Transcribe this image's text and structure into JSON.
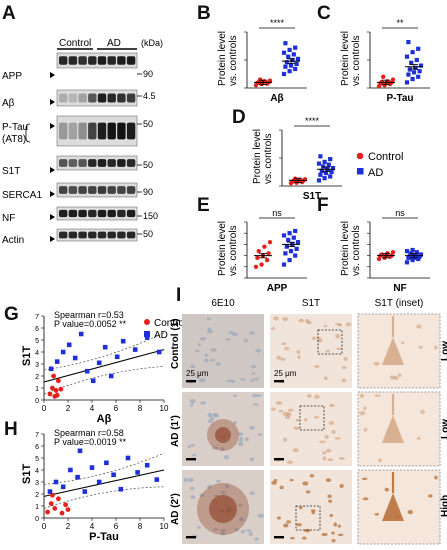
{
  "panels": {
    "A": {
      "label": "A",
      "groups": [
        "Control",
        "AD"
      ],
      "unit": "(kDa)",
      "rows": [
        {
          "name": "APP",
          "marker": "90"
        },
        {
          "name": "Aβ",
          "marker": "4.5"
        },
        {
          "name": "P-Tau",
          "name2": "(AT8)",
          "marker": "50"
        },
        {
          "name": "S1T",
          "marker": "50"
        },
        {
          "name": "SERCA1",
          "marker": "90"
        },
        {
          "name": "NF",
          "marker": "150"
        },
        {
          "name": "Actin",
          "marker": "50"
        }
      ]
    },
    "B": {
      "label": "B"
    },
    "C": {
      "label": "C"
    },
    "D": {
      "label": "D"
    },
    "E": {
      "label": "E"
    },
    "F": {
      "label": "F"
    },
    "G": {
      "label": "G"
    },
    "H": {
      "label": "H"
    },
    "I": {
      "label": "I",
      "columns": [
        "6E10",
        "S1T",
        "S1T (inset)"
      ],
      "rows": [
        {
          "name": "Control (1)",
          "grade": "Low"
        },
        {
          "name": "AD (1')",
          "grade": "Low"
        },
        {
          "name": "AD (2')",
          "grade": "High"
        }
      ],
      "scalebar": "25 μm",
      "colors": {
        "tissue": "#efe2d8",
        "hematoxylin": "#9aa8b8",
        "dab": "#b8713a",
        "plaque": "#8a3b20"
      }
    }
  },
  "legend": {
    "control": "Control",
    "ad": "AD"
  },
  "colors": {
    "control": "#e8201c",
    "ad": "#1f2fd8"
  },
  "chart_data": [
    {
      "id": "B",
      "type": "scatter",
      "xlabel": "Aβ",
      "ylabel": "Protein level vs. controls",
      "significance": "****",
      "ylim": [
        0,
        10
      ],
      "groups": [
        {
          "name": "Control",
          "values": [
            0.5,
            0.7,
            0.8,
            0.9,
            1.0,
            1.0,
            1.1,
            1.2,
            1.3,
            1.5
          ],
          "mean": 1.0
        },
        {
          "name": "AD",
          "values": [
            2.5,
            3.0,
            3.4,
            3.8,
            4.0,
            4.3,
            4.6,
            5.0,
            5.2,
            5.6,
            6.0,
            6.3,
            6.8,
            7.2,
            8.0
          ],
          "mean": 4.8
        }
      ]
    },
    {
      "id": "C",
      "type": "scatter",
      "xlabel": "P-Tau",
      "ylabel": "Protein level vs. controls",
      "significance": "**",
      "ylim": [
        0,
        10
      ],
      "groups": [
        {
          "name": "Control",
          "values": [
            0.3,
            0.5,
            0.7,
            0.8,
            0.9,
            1.0,
            1.1,
            1.2,
            1.5,
            2.0
          ],
          "mean": 1.0
        },
        {
          "name": "AD",
          "values": [
            1.0,
            1.6,
            2.0,
            2.4,
            2.8,
            3.0,
            3.3,
            3.6,
            4.0,
            4.5,
            5.0,
            5.6,
            6.4,
            7.0,
            8.2
          ],
          "mean": 3.8
        }
      ]
    },
    {
      "id": "D",
      "type": "scatter",
      "xlabel": "S1T",
      "ylabel": "Protein level vs. controls",
      "significance": "****",
      "ylim": [
        0,
        10
      ],
      "groups": [
        {
          "name": "Control",
          "values": [
            0.5,
            0.6,
            0.7,
            0.8,
            0.9,
            1.0,
            1.0,
            1.1,
            1.2,
            1.3
          ],
          "mean": 1.0
        },
        {
          "name": "AD",
          "values": [
            1.0,
            1.4,
            1.7,
            2.0,
            2.3,
            2.5,
            2.7,
            3.0,
            3.2,
            3.5,
            3.8,
            4.0,
            4.3,
            4.8,
            5.3
          ],
          "mean": 3.0
        }
      ]
    },
    {
      "id": "E",
      "type": "scatter",
      "xlabel": "APP",
      "ylabel": "Protein level vs. controls",
      "significance": "ns",
      "ylim": [
        0,
        2.5
      ],
      "groups": [
        {
          "name": "Control",
          "values": [
            0.5,
            0.6,
            0.8,
            0.9,
            1.0,
            1.1,
            1.2,
            1.4,
            1.6
          ],
          "mean": 1.0
        },
        {
          "name": "AD",
          "values": [
            0.6,
            0.8,
            1.0,
            1.1,
            1.2,
            1.3,
            1.4,
            1.5,
            1.6,
            1.7,
            1.8,
            1.9,
            2.0,
            2.1
          ],
          "mean": 1.5
        }
      ]
    },
    {
      "id": "F",
      "type": "scatter",
      "xlabel": "NF",
      "ylabel": "Protein level vs. controls",
      "significance": "ns",
      "ylim": [
        0,
        2.5
      ],
      "groups": [
        {
          "name": "Control",
          "values": [
            0.85,
            0.9,
            0.95,
            1.0,
            1.0,
            1.0,
            1.05,
            1.1,
            1.15
          ],
          "mean": 1.0
        },
        {
          "name": "AD",
          "values": [
            0.7,
            0.8,
            0.85,
            0.9,
            0.9,
            0.95,
            1.0,
            1.0,
            1.05,
            1.1,
            1.15,
            1.2,
            1.25,
            0.95
          ],
          "mean": 1.0
        }
      ]
    },
    {
      "id": "G",
      "type": "scatter",
      "xlabel": "Aβ",
      "ylabel": "S1T",
      "xlim": [
        0,
        10
      ],
      "ylim": [
        0,
        7
      ],
      "xticks": [
        0,
        2,
        4,
        6,
        8,
        10
      ],
      "yticks": [
        0,
        1,
        2,
        3,
        4,
        5,
        6,
        7
      ],
      "annotation": [
        "Spearman r=0.53",
        "P value=0.0052 **"
      ],
      "regression": {
        "x": [
          0,
          10
        ],
        "y": [
          1.5,
          4.2
        ]
      },
      "series": [
        {
          "name": "Control",
          "points": [
            [
              0.5,
              0.5
            ],
            [
              0.7,
              1.0
            ],
            [
              0.9,
              0.3
            ],
            [
              1.0,
              0.8
            ],
            [
              1.2,
              1.6
            ],
            [
              0.8,
              2.0
            ],
            [
              1.4,
              0.9
            ],
            [
              1.1,
              0.4
            ]
          ]
        },
        {
          "name": "AD",
          "points": [
            [
              0.6,
              2.6
            ],
            [
              1.1,
              3.2
            ],
            [
              1.6,
              4.0
            ],
            [
              2.1,
              4.6
            ],
            [
              2.6,
              3.5
            ],
            [
              3.1,
              5.5
            ],
            [
              3.6,
              2.4
            ],
            [
              4.1,
              1.6
            ],
            [
              4.6,
              3.1
            ],
            [
              5.1,
              4.4
            ],
            [
              5.6,
              2.0
            ],
            [
              6.1,
              3.6
            ],
            [
              6.6,
              4.9
            ],
            [
              7.6,
              4.2
            ],
            [
              8.6,
              5.2
            ],
            [
              9.6,
              4.0
            ]
          ]
        }
      ]
    },
    {
      "id": "H",
      "type": "scatter",
      "xlabel": "P-Tau",
      "ylabel": "S1T",
      "xlim": [
        0,
        10
      ],
      "ylim": [
        0,
        7
      ],
      "xticks": [
        0,
        2,
        4,
        6,
        8,
        10
      ],
      "yticks": [
        0,
        1,
        2,
        3,
        4,
        5,
        6,
        7
      ],
      "annotation": [
        "Spearman r=0.58",
        "P value=0.0019 **"
      ],
      "regression": {
        "x": [
          0,
          10
        ],
        "y": [
          1.8,
          4.0
        ]
      },
      "series": [
        {
          "name": "Control",
          "points": [
            [
              0.3,
              0.5
            ],
            [
              0.6,
              1.2
            ],
            [
              0.9,
              0.8
            ],
            [
              1.2,
              1.6
            ],
            [
              1.5,
              0.4
            ],
            [
              0.7,
              1.9
            ],
            [
              1.8,
              1.1
            ],
            [
              2.0,
              0.7
            ]
          ]
        },
        {
          "name": "AD",
          "points": [
            [
              0.5,
              2.2
            ],
            [
              1.0,
              3.0
            ],
            [
              1.6,
              2.6
            ],
            [
              2.2,
              4.0
            ],
            [
              2.8,
              3.4
            ],
            [
              3.4,
              2.2
            ],
            [
              4.0,
              4.2
            ],
            [
              4.6,
              3.0
            ],
            [
              5.2,
              4.6
            ],
            [
              5.8,
              3.6
            ],
            [
              6.4,
              2.4
            ],
            [
              7.0,
              5.0
            ],
            [
              7.8,
              3.8
            ],
            [
              8.6,
              4.4
            ],
            [
              9.4,
              3.2
            ],
            [
              3.0,
              5.6
            ]
          ]
        }
      ]
    }
  ]
}
